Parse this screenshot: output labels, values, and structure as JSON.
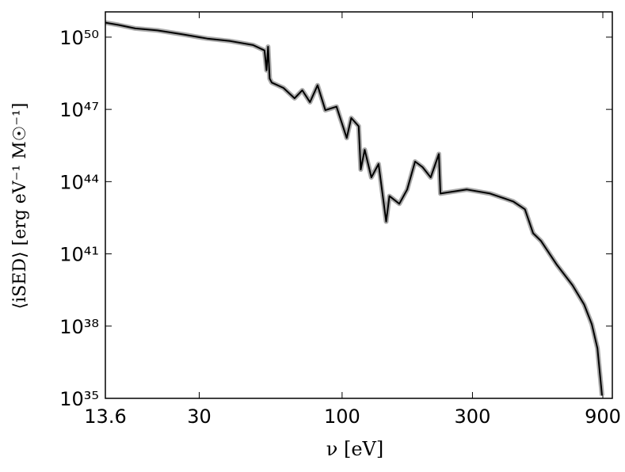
{
  "chart_data": {
    "type": "line",
    "x_label": "ν [eV]",
    "y_label": "⟨iSED⟩ [erg eV⁻¹ M☉⁻¹]",
    "x_scale": "log",
    "y_scale": "log",
    "xlim": [
      13.6,
      975
    ],
    "ylim": [
      1e+35,
      1.12e+51
    ],
    "xticks": [
      13.6,
      30,
      100,
      300,
      900
    ],
    "yticks": [
      {
        "value": 1e+35,
        "label": "10³⁵"
      },
      {
        "value": 1e+38,
        "label": "10³⁸"
      },
      {
        "value": 1e+41,
        "label": "10⁴¹"
      },
      {
        "value": 1e+44,
        "label": "10⁴⁴"
      },
      {
        "value": 1e+47,
        "label": "10⁴⁷"
      },
      {
        "value": 1e+50,
        "label": "10⁵⁰"
      }
    ],
    "band_color": "#aaaaaa",
    "series": [
      {
        "color": "#000000",
        "x": [
          13.6,
          15.2,
          17.5,
          21.1,
          26.1,
          32.1,
          38.9,
          47.2,
          52.0,
          52.9,
          53.6,
          54.3,
          55.3,
          61.0,
          67.0,
          71.5,
          76.3,
          81.3,
          86.8,
          95.4,
          104,
          108,
          115,
          117,
          121,
          128,
          136,
          145,
          149,
          162,
          173,
          185,
          197,
          211,
          226,
          229,
          286,
          348,
          423,
          467,
          500,
          535,
          611,
          697,
          769,
          820,
          860,
          894
        ],
        "values": [
          4e+50,
          3.2e+50,
          2.3e+50,
          1.9e+50,
          1.3e+50,
          8.7e+49,
          6.9e+49,
          4.7e+49,
          2.8e+49,
          4.2e+48,
          4e+49,
          1.9e+48,
          1.3e+48,
          7.8e+47,
          2.9e+47,
          6.2e+47,
          2e+47,
          1e+48,
          9.3e+46,
          1.3e+47,
          6.5e+45,
          4.4e+46,
          2e+46,
          3.2e+44,
          2.1e+45,
          1.5e+44,
          5.4e+44,
          2.2e+42,
          2.5e+43,
          1.2e+43,
          4.7e+43,
          6.8e+44,
          4e+44,
          1.5e+44,
          1.4e+45,
          3.2e+43,
          4.7e+43,
          3.2e+43,
          1.5e+43,
          7.1e+42,
          7.2e+41,
          3.4e+41,
          3.5e+40,
          5e+39,
          7.9e+38,
          1.2e+38,
          1.2e+37,
          1.3e+35
        ]
      }
    ]
  }
}
